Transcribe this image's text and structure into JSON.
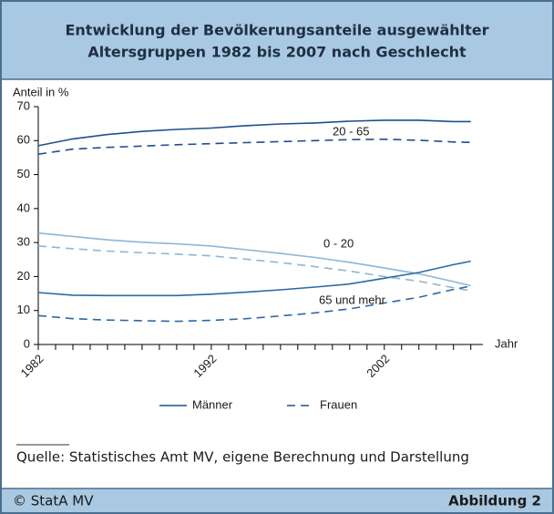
{
  "chart_data": {
    "type": "line",
    "title_lines": [
      "Entwicklung der Bevölkerungsanteile ausgewählter",
      "Altersgruppen 1982 bis 2007 nach Geschlecht"
    ],
    "ylabel": "Anteil in %",
    "xlabel": "Jahr",
    "x": [
      1982,
      1984,
      1986,
      1988,
      1990,
      1992,
      1994,
      1996,
      1998,
      2000,
      2002,
      2004,
      2006,
      2007
    ],
    "xlim": [
      1982,
      2007.7
    ],
    "xticks": [
      1982,
      1992,
      2002
    ],
    "xminor_ticks": [
      1983,
      1984,
      1985,
      1986,
      1987,
      1988,
      1989,
      1990,
      1991,
      1993,
      1994,
      1995,
      1996,
      1997,
      1998,
      1999,
      2000,
      2001,
      2003,
      2004,
      2005,
      2006,
      2007
    ],
    "ylim": [
      0,
      70
    ],
    "yticks": [
      0,
      10,
      20,
      30,
      40,
      50,
      60,
      70
    ],
    "grid": false,
    "legend": [
      {
        "name": "Männer",
        "dash": "solid"
      },
      {
        "name": "Frauen",
        "dash": "dashed"
      }
    ],
    "groups": [
      {
        "label": "20 - 65",
        "color": "#1f4f8f",
        "series": [
          {
            "dash": "solid",
            "values": [
              58.5,
              60.5,
              61.8,
              62.7,
              63.3,
              63.7,
              64.4,
              64.9,
              65.2,
              65.7,
              66,
              66,
              65.6,
              65.6
            ]
          },
          {
            "dash": "dashed",
            "values": [
              56,
              57.5,
              58,
              58.4,
              58.8,
              59.1,
              59.4,
              59.7,
              60,
              60.3,
              60.4,
              60.1,
              59.6,
              59.5
            ]
          }
        ]
      },
      {
        "label": "0 - 20",
        "color": "#8db6d6",
        "series": [
          {
            "dash": "solid",
            "values": [
              32.8,
              31.8,
              30.8,
              30.1,
              29.6,
              29,
              27.9,
              26.8,
              25.6,
              24.2,
              22.5,
              20.8,
              18.5,
              17.3
            ]
          },
          {
            "dash": "dashed",
            "values": [
              29,
              28.2,
              27.5,
              27,
              26.6,
              26.1,
              25.1,
              24.1,
              22.9,
              21.6,
              20,
              18.6,
              16.7,
              15.8
            ]
          }
        ]
      },
      {
        "label": "65 und mehr",
        "color": "#2a69a6",
        "series": [
          {
            "dash": "solid",
            "values": [
              15.3,
              14.5,
              14.4,
              14.4,
              14.4,
              14.8,
              15.4,
              16.1,
              16.9,
              17.8,
              19.5,
              21.2,
              23.5,
              24.5
            ]
          },
          {
            "dash": "dashed",
            "values": [
              8.5,
              7.6,
              7.2,
              7,
              6.8,
              7.1,
              7.6,
              8.4,
              9.3,
              10.5,
              12.2,
              13.9,
              16.2,
              17.2
            ]
          }
        ]
      }
    ],
    "source": "Quelle: Statistisches Amt MV, eigene Berechnung und Darstellung",
    "footer_left": "© StatA MV",
    "footer_right": "Abbildung 2"
  }
}
